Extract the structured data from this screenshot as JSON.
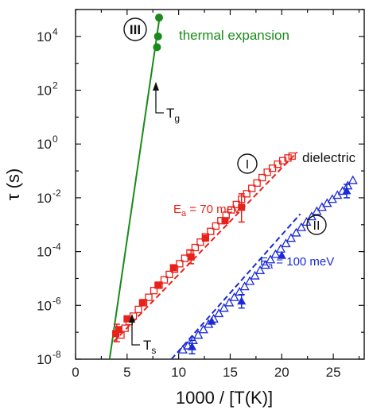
{
  "chart_data": {
    "type": "scatter",
    "xlabel": "1000 / [T(K)]",
    "ylabel": "τ (s)",
    "xlim": [
      0,
      28
    ],
    "ylim_log10": [
      -8,
      5
    ],
    "y_scale": "log",
    "x_ticks": [
      "0",
      "5",
      "10",
      "15",
      "20",
      "25"
    ],
    "y_tick_exponents": [
      -8,
      -6,
      -4,
      -2,
      0,
      2,
      4
    ],
    "colors": {
      "green": "#1a8a1a",
      "red": "#e8221b",
      "blue": "#1b2ad6"
    },
    "series": [
      {
        "name": "thermal expansion",
        "marker": "filled-circle",
        "color": "green",
        "points": [
          [
            8.1,
            4.7
          ],
          [
            8.0,
            4.0
          ],
          [
            7.9,
            3.6
          ]
        ]
      },
      {
        "marker": "open-square",
        "color": "red",
        "points": [
          [
            4.4,
            -7.1
          ],
          [
            4.8,
            -6.85
          ],
          [
            5.2,
            -6.6
          ],
          [
            5.6,
            -6.4
          ],
          [
            6.1,
            -6.15
          ],
          [
            6.6,
            -5.9
          ],
          [
            7.1,
            -5.7
          ],
          [
            7.6,
            -5.45
          ],
          [
            8.1,
            -5.25
          ],
          [
            8.6,
            -5.05
          ],
          [
            9.1,
            -4.85
          ],
          [
            9.6,
            -4.65
          ],
          [
            10.1,
            -4.45
          ],
          [
            10.6,
            -4.25
          ],
          [
            11.1,
            -4.05
          ],
          [
            11.6,
            -3.85
          ],
          [
            12.1,
            -3.65
          ],
          [
            12.6,
            -3.45
          ],
          [
            13.1,
            -3.25
          ],
          [
            13.6,
            -3.05
          ],
          [
            14.1,
            -2.85
          ],
          [
            14.6,
            -2.65
          ],
          [
            15.1,
            -2.45
          ],
          [
            15.6,
            -2.25
          ],
          [
            16.1,
            -2.05
          ],
          [
            16.6,
            -1.85
          ],
          [
            17.1,
            -1.65
          ],
          [
            17.6,
            -1.45
          ],
          [
            18.1,
            -1.25
          ],
          [
            18.6,
            -1.05
          ],
          [
            19.1,
            -0.9
          ],
          [
            19.6,
            -0.75
          ],
          [
            20.1,
            -0.62
          ],
          [
            20.6,
            -0.52
          ],
          [
            21.0,
            -0.45
          ]
        ]
      },
      {
        "marker": "filled-square",
        "color": "red",
        "points": [
          [
            3.9,
            -7.05
          ],
          [
            4.2,
            -6.9
          ],
          [
            5.0,
            -6.5
          ],
          [
            6.5,
            -5.9
          ],
          [
            8.0,
            -5.25
          ],
          [
            9.5,
            -4.6
          ],
          [
            11.2,
            -4.2
          ],
          [
            12.6,
            -3.5
          ],
          [
            14.5,
            -2.85
          ],
          [
            16.1,
            -2.35
          ]
        ]
      },
      {
        "marker": "open-triangle",
        "color": "blue",
        "points": [
          [
            10.4,
            -7.65
          ],
          [
            10.9,
            -7.5
          ],
          [
            11.4,
            -7.3
          ],
          [
            11.9,
            -7.1
          ],
          [
            12.4,
            -6.9
          ],
          [
            12.9,
            -6.7
          ],
          [
            13.4,
            -6.5
          ],
          [
            13.9,
            -6.3
          ],
          [
            14.4,
            -6.1
          ],
          [
            14.9,
            -5.9
          ],
          [
            15.4,
            -5.7
          ],
          [
            15.9,
            -5.5
          ],
          [
            16.4,
            -5.3
          ],
          [
            16.9,
            -5.1
          ],
          [
            17.4,
            -4.9
          ],
          [
            17.9,
            -4.7
          ],
          [
            18.4,
            -4.5
          ],
          [
            18.9,
            -4.3
          ],
          [
            19.4,
            -4.1
          ],
          [
            19.9,
            -3.9
          ],
          [
            20.4,
            -3.7
          ],
          [
            20.9,
            -3.5
          ],
          [
            21.4,
            -3.3
          ],
          [
            21.9,
            -3.1
          ],
          [
            22.4,
            -2.9
          ],
          [
            22.9,
            -2.7
          ],
          [
            23.4,
            -2.5
          ],
          [
            23.9,
            -2.35
          ],
          [
            24.4,
            -2.2
          ],
          [
            24.9,
            -2.05
          ],
          [
            25.4,
            -1.9
          ],
          [
            25.9,
            -1.75
          ],
          [
            26.4,
            -1.55
          ],
          [
            26.9,
            -1.35
          ]
        ]
      },
      {
        "marker": "filled-triangle",
        "color": "blue",
        "points": [
          [
            11.3,
            -7.55
          ],
          [
            13.2,
            -6.6
          ],
          [
            16.1,
            -5.85
          ],
          [
            20.0,
            -4.15
          ],
          [
            26.3,
            -1.75
          ]
        ]
      }
    ],
    "fit_lines": [
      {
        "color": "green",
        "style": "solid",
        "from": [
          3.3,
          -8.0
        ],
        "to": [
          8.15,
          4.7
        ]
      },
      {
        "color": "red",
        "style": "dashed",
        "from": [
          3.7,
          -7.35
        ],
        "to": [
          21.5,
          -0.3
        ]
      },
      {
        "color": "blue",
        "style": "dashed",
        "from": [
          9.3,
          -8.0
        ],
        "to": [
          21.8,
          -2.6
        ]
      }
    ],
    "error_bars": [
      {
        "color": "red",
        "x": 4.0,
        "center": -7.0,
        "low": -7.35,
        "high": -6.7
      },
      {
        "color": "red",
        "x": 11.2,
        "center": -4.2,
        "low": -4.45,
        "high": -3.95
      },
      {
        "color": "red",
        "x": 16.1,
        "center": -2.35,
        "low": -2.9,
        "high": -1.85
      },
      {
        "color": "blue",
        "x": 11.3,
        "center": -7.55,
        "low": -7.8,
        "high": -7.3
      },
      {
        "color": "blue",
        "x": 16.1,
        "center": -5.85,
        "low": -6.1,
        "high": -5.6
      },
      {
        "color": "blue",
        "x": 26.3,
        "center": -1.75,
        "low": -2.0,
        "high": -1.5
      }
    ],
    "annotations": {
      "label_III": "III",
      "label_I": "I",
      "label_II": "II",
      "thermal_expansion": "thermal expansion",
      "dielectric": "dielectric",
      "tg_main": "T",
      "tg_sub": "g",
      "ts_main": "T",
      "ts_sub": "s",
      "ea1_prefix": "E",
      "ea1_sub": "a",
      "ea1_value": " = 70 meV",
      "ea2_prefix": "E",
      "ea2_sub": "a",
      "ea2_value": " = 100 meV"
    }
  }
}
